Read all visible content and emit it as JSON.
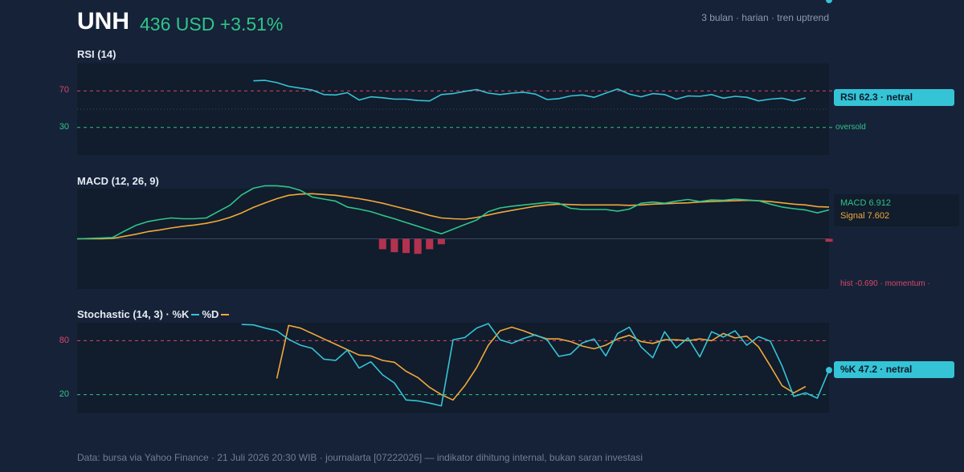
{
  "header": {
    "ticker": "UNH",
    "price_change": "436 USD +3.51%",
    "subtitle": "3 bulan · harian · tren uptrend"
  },
  "colors": {
    "background": "#162238",
    "panel": "#111c2c",
    "cyan": "#34c4d6",
    "green": "#2ec58a",
    "orange": "#f0a93a",
    "red": "#d9476a",
    "hist_pos": "#1e7a60",
    "hist_neg": "#b3324f"
  },
  "footer": "Data: bursa via Yahoo Finance · 21 Juli 2026 20:30 WIB · journalarta [07222026] — indikator dihitung internal, bukan saran investasi",
  "chart_data": [
    {
      "type": "line",
      "title": "RSI (14)",
      "ylim": [
        0,
        100
      ],
      "y_ticks": [
        70,
        30
      ],
      "overbought": 70,
      "oversold": 30,
      "oversold_label": "oversold",
      "midline": 50,
      "badge": "RSI 62.3 · netral",
      "series": [
        {
          "values": [
            null,
            null,
            null,
            null,
            null,
            null,
            null,
            null,
            null,
            null,
            null,
            null,
            null,
            null,
            null,
            81,
            81.5,
            79,
            75,
            73,
            71,
            66,
            65.5,
            68,
            60,
            63.5,
            62.5,
            61,
            61,
            59.5,
            59,
            66,
            67,
            69.5,
            71.5,
            67.5,
            66,
            67.5,
            68.5,
            66.5,
            60.5,
            61.5,
            64.5,
            65.5,
            63,
            67.5,
            72,
            66.5,
            63.5,
            67,
            66,
            61,
            64.5,
            64,
            66,
            62,
            64,
            63,
            59,
            61,
            62,
            59,
            62.3
          ]
        }
      ]
    },
    {
      "type": "line",
      "title": "MACD (12, 26, 9)",
      "macd_label": "MACD 6.912",
      "signal_label": "Signal 7.602",
      "hist_label": "hist -0.690 · momentum ·",
      "ylim": [
        -12,
        12
      ],
      "series": [
        {
          "name": "MACD",
          "values": [
            0,
            0.1,
            0.2,
            0.3,
            1.8,
            3.2,
            4.1,
            4.6,
            5,
            4.8,
            4.8,
            5,
            6.5,
            8,
            10.5,
            12.1,
            12.7,
            12.7,
            12.4,
            11.6,
            10,
            9.5,
            9,
            7.6,
            7.1,
            6.5,
            5.6,
            4.8,
            3.9,
            3,
            2.1,
            1.2,
            2.3,
            3.4,
            4.5,
            6.5,
            7.4,
            7.8,
            8.1,
            8.4,
            8.7,
            8.5,
            7.3,
            7,
            7,
            7,
            6.6,
            7.1,
            8.5,
            8.8,
            8.5,
            9,
            9.4,
            8.9,
            9.3,
            9.2,
            9.5,
            9.3,
            9.1,
            8.3,
            7.6,
            7.2,
            6.9,
            6.2,
            6.912
          ]
        },
        {
          "name": "Signal",
          "values": [
            0,
            0,
            0,
            0.1,
            0.6,
            1.1,
            1.7,
            2.1,
            2.6,
            3,
            3.3,
            3.7,
            4.3,
            5.1,
            6.2,
            7.5,
            8.6,
            9.6,
            10.4,
            10.7,
            10.8,
            10.6,
            10.4,
            10,
            9.6,
            9.1,
            8.5,
            7.8,
            7.1,
            6.4,
            5.6,
            5,
            4.8,
            4.7,
            5.1,
            5.7,
            6.3,
            6.8,
            7.3,
            7.8,
            8.1,
            8.3,
            8.2,
            8.1,
            8.1,
            8.1,
            8.1,
            8,
            8.1,
            8.3,
            8.4,
            8.5,
            8.6,
            8.8,
            8.9,
            9,
            9.1,
            9.2,
            9.1,
            8.9,
            8.6,
            8.3,
            8.1,
            7.7,
            7.602
          ]
        },
        {
          "name": "hist",
          "values": [
            0,
            0,
            0,
            0,
            0,
            0,
            0,
            0,
            0,
            0,
            0,
            0,
            0,
            0,
            0,
            0,
            0,
            0,
            0,
            0,
            0,
            0,
            0,
            0,
            0,
            0,
            -2.5,
            -3.2,
            -3.4,
            -3.6,
            -2.5,
            -1.3,
            0,
            0,
            0,
            0,
            0,
            0,
            0,
            0,
            0,
            0,
            0,
            0,
            0,
            0,
            0,
            0,
            0,
            0,
            0,
            0,
            0,
            0,
            0,
            0,
            0,
            0,
            0,
            0,
            0,
            0,
            0,
            0,
            -0.69
          ]
        }
      ]
    },
    {
      "type": "line",
      "title": "Stochastic (14, 3) · %K",
      "legend": [
        "%K",
        "%D"
      ],
      "ylim": [
        0,
        100
      ],
      "y_ticks": [
        80,
        20
      ],
      "overbought": 80,
      "oversold": 20,
      "badge": "%K 47.2 · netral",
      "series": [
        {
          "name": "%K",
          "values": [
            null,
            null,
            null,
            null,
            null,
            null,
            null,
            null,
            null,
            null,
            null,
            null,
            null,
            null,
            null,
            null,
            null,
            null,
            null,
            null,
            null,
            null,
            null,
            null,
            null,
            null,
            null,
            null,
            null,
            null,
            null,
            null,
            null,
            null,
            null,
            null,
            null,
            null,
            null,
            null,
            null,
            null,
            null,
            null,
            null,
            null,
            null,
            null,
            null,
            null,
            null,
            null,
            null,
            null,
            null,
            null,
            null,
            null,
            null,
            null,
            null,
            null,
            null,
            null,
            null
          ]
        },
        {
          "name": "%D",
          "values": [
            null
          ]
        }
      ]
    }
  ]
}
